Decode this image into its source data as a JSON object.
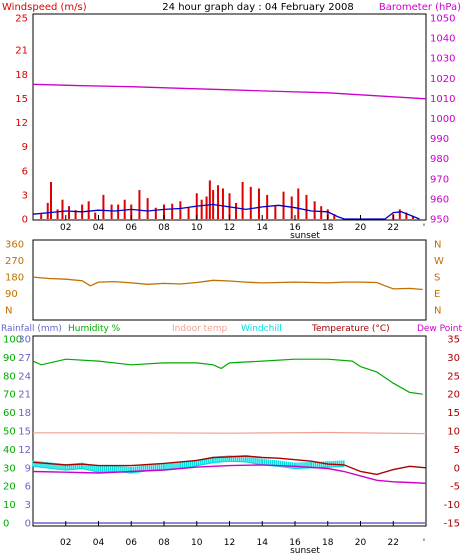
{
  "colors": {
    "wind_speed": "#dd0000",
    "wind_avg": "#0000cc",
    "barometer": "#cc00cc",
    "direction": "#c07000",
    "rainfall": "#6666cc",
    "humidity": "#00aa00",
    "indoor_temp": "#f0a090",
    "windchill": "#00e0e0",
    "temperature": "#aa0000",
    "dew_point": "#cc00cc",
    "axis": "#000000"
  },
  "chart_data": [
    {
      "type": "bar",
      "title": "24 hour graph day : 04 February 2008",
      "ylabel_left": "Windspeed (m/s)",
      "ylabel_right": "Barometer (hPa)",
      "left_ticks": [
        "0",
        "3",
        "6",
        "9",
        "12",
        "15",
        "18",
        "21",
        "25"
      ],
      "right_ticks": [
        "950",
        "960",
        "970",
        "980",
        "990",
        "1000",
        "1010",
        "1020",
        "1030",
        "1040",
        "1050"
      ],
      "x_ticks": [
        "02",
        "04",
        "06",
        "08",
        "10",
        "12",
        "14",
        "16",
        "18",
        "20",
        "22"
      ],
      "x_end_marker": "'",
      "sunset_label": "sunset",
      "ylim_left": [
        0,
        25
      ],
      "ylim_right": [
        950,
        1050
      ],
      "xlim": [
        0,
        24
      ],
      "barometer": {
        "x": [
          0,
          3,
          6,
          9,
          12,
          15,
          18,
          21,
          24
        ],
        "y": [
          1017,
          1016.3,
          1015.8,
          1015,
          1014.3,
          1013.5,
          1012.8,
          1011.3,
          1009.8
        ]
      },
      "wind_gust": {
        "x": [
          0.5,
          0.9,
          1.1,
          1.5,
          1.8,
          2.2,
          2.6,
          3.0,
          3.4,
          3.8,
          4.3,
          4.8,
          5.2,
          5.6,
          6.0,
          6.5,
          7.0,
          7.5,
          8.0,
          8.5,
          9.0,
          9.5,
          10.0,
          10.3,
          10.6,
          10.8,
          11.0,
          11.3,
          11.6,
          12.0,
          12.4,
          12.8,
          13.3,
          13.8,
          14.3,
          14.8,
          15.3,
          15.8,
          16.2,
          16.7,
          17.2,
          17.6,
          18.0,
          18.4,
          22.0,
          22.4,
          22.8,
          23.2
        ],
        "y": [
          0.6,
          2.0,
          4.6,
          1.2,
          2.4,
          1.6,
          1.1,
          1.8,
          2.2,
          0.8,
          3.0,
          1.8,
          1.8,
          2.4,
          1.8,
          3.6,
          2.6,
          1.4,
          1.8,
          1.9,
          2.2,
          1.4,
          3.2,
          2.4,
          2.8,
          4.8,
          3.6,
          4.2,
          3.8,
          3.2,
          2.0,
          4.6,
          4.0,
          3.8,
          3.0,
          1.6,
          3.4,
          2.8,
          3.8,
          3.0,
          2.2,
          1.6,
          1.2,
          0.6,
          0.6,
          1.2,
          0.8,
          0.4
        ]
      },
      "wind_avg": {
        "x": [
          0,
          1,
          2,
          3,
          4,
          5,
          6,
          7,
          8,
          9,
          10,
          11,
          12,
          13,
          14,
          15,
          16,
          17,
          18,
          18.6,
          19,
          21.5,
          22,
          22.5,
          23,
          23.6
        ],
        "y": [
          0.6,
          0.8,
          1.0,
          0.9,
          1.1,
          1.0,
          1.2,
          1.0,
          1.2,
          1.3,
          1.6,
          1.8,
          1.5,
          1.2,
          1.5,
          1.7,
          1.4,
          1.0,
          0.9,
          0.3,
          0,
          0,
          0.8,
          0.9,
          0.5,
          0
        ]
      }
    },
    {
      "type": "line",
      "left_ticks": [
        "N",
        "90",
        "180",
        "270",
        "360"
      ],
      "right_ticks": [
        "N",
        "E",
        "S",
        "W",
        "N"
      ],
      "ylim": [
        0,
        360
      ],
      "xlim": [
        0,
        24
      ],
      "direction": {
        "x": [
          0,
          0.5,
          1,
          2,
          3,
          3.5,
          4,
          5,
          6,
          7,
          8,
          9,
          10,
          11,
          12,
          13,
          14,
          15,
          16,
          17,
          18,
          19,
          20,
          21,
          21.5,
          22,
          23,
          23.8
        ],
        "y": [
          180,
          175,
          172,
          168,
          160,
          132,
          152,
          155,
          148,
          140,
          145,
          142,
          150,
          162,
          158,
          152,
          148,
          150,
          152,
          150,
          148,
          152,
          152,
          150,
          132,
          115,
          118,
          112
        ]
      }
    },
    {
      "type": "line",
      "labels": [
        "Rainfall (mm)",
        "Humidity %",
        "Indoor temp",
        "Windchill",
        "Temperature (°C)",
        "Dew Point"
      ],
      "left_hum_ticks": [
        "0",
        "10",
        "20",
        "30",
        "40",
        "50",
        "60",
        "70",
        "80",
        "90",
        "100"
      ],
      "left_rain_ticks": [
        "0",
        "3",
        "6",
        "9",
        "12",
        "15",
        "18",
        "21",
        "24",
        "27",
        "30"
      ],
      "right_ticks": [
        "-15",
        "-10",
        "-5",
        "0",
        "5",
        "10",
        "15",
        "20",
        "25",
        "30",
        "35"
      ],
      "x_ticks": [
        "02",
        "04",
        "06",
        "08",
        "10",
        "12",
        "14",
        "16",
        "18",
        "20",
        "22"
      ],
      "x_end_marker": "'",
      "sunset_label": "sunset",
      "ylim_temp": [
        -15,
        35
      ],
      "xlim": [
        0,
        24
      ],
      "humidity": {
        "x": [
          0,
          0.5,
          2,
          4,
          6,
          8,
          10,
          11,
          11.5,
          12,
          14,
          16,
          18,
          19.5,
          20,
          21,
          22,
          23,
          23.8
        ],
        "y": [
          88,
          86,
          89,
          88,
          86,
          87,
          87,
          86,
          84,
          87,
          88,
          89,
          89,
          88,
          85,
          82,
          76,
          71,
          70
        ]
      },
      "indoor_temp": {
        "x": [
          0,
          6,
          12,
          18,
          24
        ],
        "y": [
          9.5,
          9.5,
          9.4,
          9.6,
          9.3
        ]
      },
      "temperature": {
        "x": [
          0,
          2,
          3,
          4,
          6,
          8,
          10,
          11,
          12,
          13,
          14,
          15,
          16,
          17,
          18,
          19,
          20,
          21,
          22,
          23,
          24
        ],
        "y": [
          1.5,
          0.8,
          1.0,
          0.6,
          0.6,
          1.2,
          2.0,
          2.8,
          3.0,
          3.2,
          2.8,
          2.6,
          2.2,
          1.8,
          1.0,
          0.8,
          -1.0,
          -1.8,
          -0.5,
          0.4,
          0
        ]
      },
      "dew_point": {
        "x": [
          0,
          2,
          4,
          6,
          8,
          10,
          12,
          14,
          16,
          18,
          19,
          20,
          21,
          22,
          23,
          24
        ],
        "y": [
          -1.0,
          -1.2,
          -1.4,
          -1.0,
          -0.6,
          0.2,
          0.6,
          0.8,
          0.4,
          -0.2,
          -1.0,
          -2.2,
          -3.4,
          -3.8,
          -4.0,
          -4.2
        ]
      },
      "windchill": {
        "x": [
          0,
          2,
          3,
          4,
          5,
          6,
          7,
          8,
          9,
          10,
          11,
          12,
          13,
          14,
          15,
          16,
          17,
          18,
          19
        ],
        "y": [
          0.4,
          -0.6,
          -0.2,
          -1.2,
          -1.0,
          -1.4,
          -0.8,
          -0.6,
          -0.2,
          0.6,
          1.4,
          1.8,
          1.6,
          0.8,
          0.4,
          -0.2,
          0,
          0.2,
          0.4
        ]
      },
      "rainfall": {
        "x": [
          0,
          24
        ],
        "y": [
          0,
          0
        ]
      }
    }
  ]
}
